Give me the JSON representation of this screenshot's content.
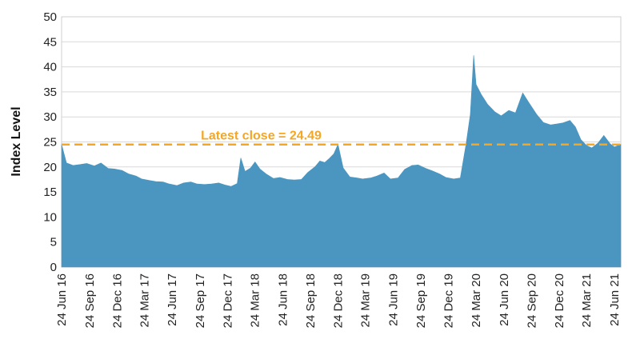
{
  "chart_data": {
    "type": "area",
    "title": "",
    "xlabel": "",
    "ylabel": "Index Level",
    "ylim": [
      0,
      50
    ],
    "yticks": [
      0,
      5,
      10,
      15,
      20,
      25,
      30,
      35,
      40,
      45,
      50
    ],
    "x_range": [
      "2016-06-24",
      "2021-07-15"
    ],
    "xtick_labels": [
      {
        "date": "2016-06-24",
        "label": "24 Jun 16"
      },
      {
        "date": "2016-09-24",
        "label": "24 Sep 16"
      },
      {
        "date": "2016-12-24",
        "label": "24 Dec 16"
      },
      {
        "date": "2017-03-24",
        "label": "24 Mar 17"
      },
      {
        "date": "2017-06-24",
        "label": "24 Jun 17"
      },
      {
        "date": "2017-09-24",
        "label": "24 Sep 17"
      },
      {
        "date": "2017-12-24",
        "label": "24 Dec 17"
      },
      {
        "date": "2018-03-24",
        "label": "24 Mar 18"
      },
      {
        "date": "2018-06-24",
        "label": "24 Jun 18"
      },
      {
        "date": "2018-09-24",
        "label": "24 Sep 18"
      },
      {
        "date": "2018-12-24",
        "label": "24 Dec 18"
      },
      {
        "date": "2019-03-24",
        "label": "24 Mar 19"
      },
      {
        "date": "2019-06-24",
        "label": "24 Jun 19"
      },
      {
        "date": "2019-09-24",
        "label": "24 Sep 19"
      },
      {
        "date": "2019-12-24",
        "label": "24 Dec 19"
      },
      {
        "date": "2020-03-24",
        "label": "24 Mar 20"
      },
      {
        "date": "2020-06-24",
        "label": "24 Jun 20"
      },
      {
        "date": "2020-09-24",
        "label": "24 Sep 20"
      },
      {
        "date": "2020-12-24",
        "label": "24 Dec 20"
      },
      {
        "date": "2021-03-24",
        "label": "24 Mar 21"
      },
      {
        "date": "2021-06-24",
        "label": "24 Jun 21"
      }
    ],
    "grid": true,
    "series": [
      {
        "color": "#4a96c0",
        "x": [
          "2016-06-24",
          "2016-07-10",
          "2016-08-01",
          "2016-08-25",
          "2016-09-15",
          "2016-10-10",
          "2016-11-01",
          "2016-11-25",
          "2016-12-15",
          "2017-01-10",
          "2017-02-01",
          "2017-02-25",
          "2017-03-15",
          "2017-04-10",
          "2017-05-01",
          "2017-05-25",
          "2017-06-15",
          "2017-07-10",
          "2017-08-01",
          "2017-08-25",
          "2017-09-15",
          "2017-10-10",
          "2017-11-01",
          "2017-11-25",
          "2017-12-15",
          "2018-01-05",
          "2018-01-25",
          "2018-02-06",
          "2018-02-20",
          "2018-03-10",
          "2018-03-25",
          "2018-04-10",
          "2018-05-01",
          "2018-05-25",
          "2018-06-15",
          "2018-07-10",
          "2018-08-01",
          "2018-08-25",
          "2018-09-15",
          "2018-10-10",
          "2018-10-25",
          "2018-11-10",
          "2018-11-25",
          "2018-12-10",
          "2018-12-24",
          "2019-01-10",
          "2019-02-01",
          "2019-02-25",
          "2019-03-15",
          "2019-04-10",
          "2019-05-01",
          "2019-05-25",
          "2019-06-15",
          "2019-07-10",
          "2019-08-01",
          "2019-08-25",
          "2019-09-15",
          "2019-10-10",
          "2019-11-01",
          "2019-11-25",
          "2019-12-15",
          "2020-01-10",
          "2020-02-01",
          "2020-02-20",
          "2020-03-05",
          "2020-03-16",
          "2020-03-24",
          "2020-04-10",
          "2020-05-01",
          "2020-05-25",
          "2020-06-15",
          "2020-07-10",
          "2020-08-01",
          "2020-08-25",
          "2020-09-15",
          "2020-10-10",
          "2020-11-01",
          "2020-11-25",
          "2020-12-15",
          "2021-01-05",
          "2021-01-28",
          "2021-02-15",
          "2021-03-05",
          "2021-03-24",
          "2021-04-10",
          "2021-05-01",
          "2021-05-20",
          "2021-06-10",
          "2021-06-24",
          "2021-07-15"
        ],
        "values": [
          24.5,
          20.8,
          20.3,
          20.5,
          20.7,
          20.2,
          20.8,
          19.7,
          19.6,
          19.3,
          18.6,
          18.2,
          17.6,
          17.3,
          17.1,
          17.0,
          16.6,
          16.3,
          16.8,
          17.0,
          16.6,
          16.5,
          16.6,
          16.8,
          16.4,
          16.1,
          16.7,
          21.8,
          19.1,
          19.8,
          21.0,
          19.6,
          18.6,
          17.7,
          17.9,
          17.5,
          17.4,
          17.5,
          18.9,
          20.1,
          21.2,
          20.9,
          21.7,
          22.6,
          24.5,
          19.8,
          18.0,
          17.8,
          17.6,
          17.8,
          18.2,
          18.8,
          17.6,
          17.8,
          19.5,
          20.3,
          20.4,
          19.7,
          19.2,
          18.6,
          17.9,
          17.6,
          17.8,
          24.6,
          30.5,
          42.3,
          36.5,
          34.5,
          32.5,
          31.0,
          30.2,
          31.3,
          30.8,
          34.8,
          32.8,
          30.5,
          28.9,
          28.4,
          28.6,
          28.8,
          29.3,
          28.0,
          25.5,
          24.3,
          23.8,
          24.8,
          26.3,
          24.6,
          24.0,
          24.5
        ]
      }
    ],
    "annotation": {
      "type": "hline",
      "y": 24.49,
      "label": "Latest close = 24.49",
      "color": "#f5a623"
    }
  }
}
